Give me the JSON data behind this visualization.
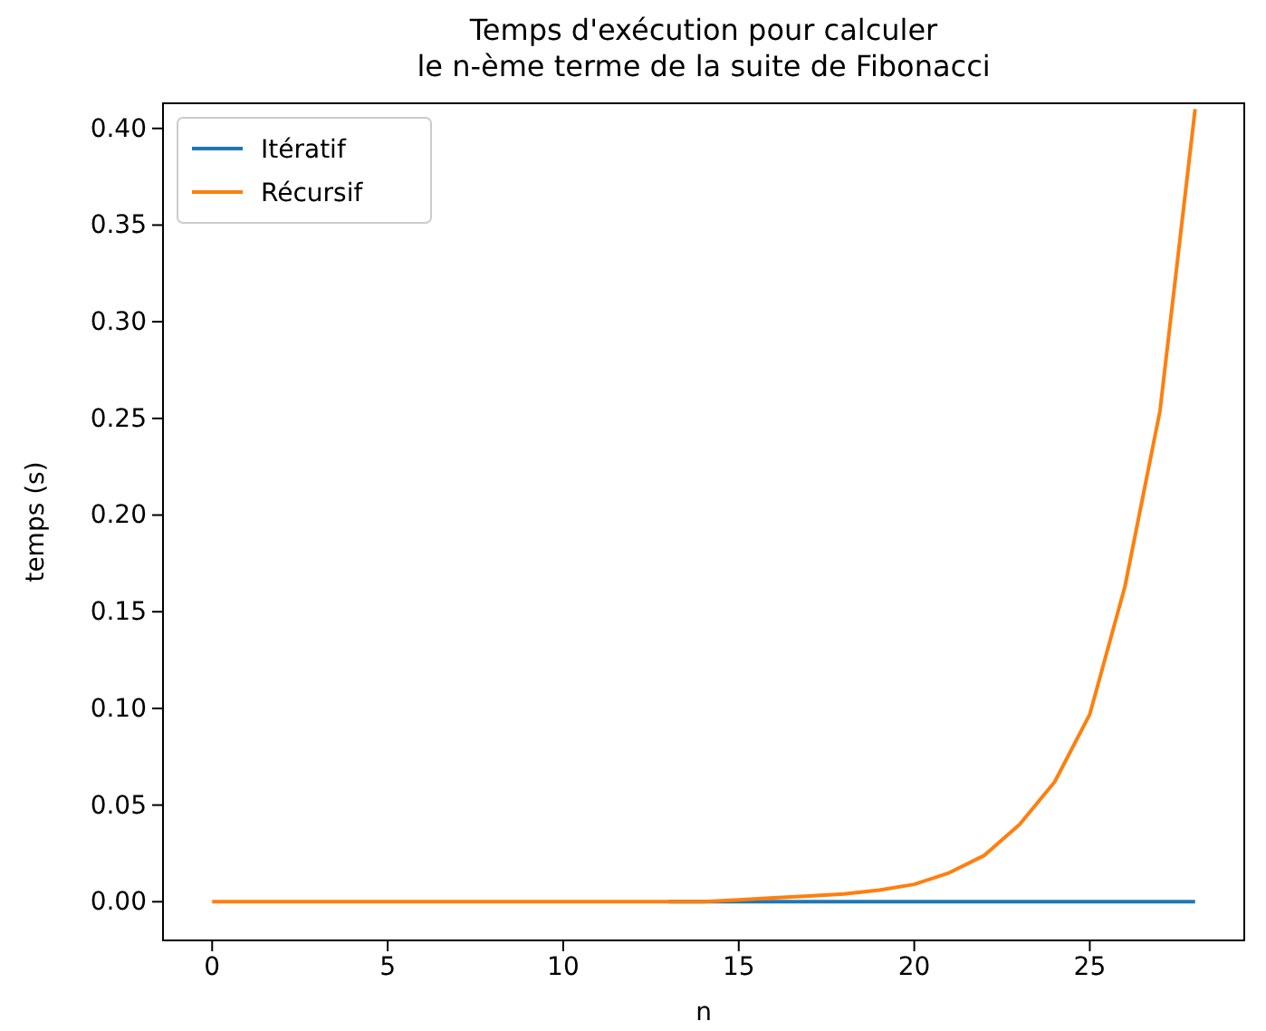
{
  "chart_data": {
    "type": "line",
    "title": "Temps d'exécution pour calculer\nle n-ème terme de la suite de Fibonacci",
    "xlabel": "n",
    "ylabel": "temps (s)",
    "x": [
      0,
      1,
      2,
      3,
      4,
      5,
      6,
      7,
      8,
      9,
      10,
      11,
      12,
      13,
      14,
      15,
      16,
      17,
      18,
      19,
      20,
      21,
      22,
      23,
      24,
      25,
      26,
      27,
      28
    ],
    "series": [
      {
        "name": "Itératif",
        "color": "#1f77b4",
        "values": [
          null,
          null,
          null,
          null,
          null,
          null,
          null,
          null,
          null,
          null,
          null,
          null,
          null,
          0,
          0,
          0,
          0,
          0,
          0,
          0,
          0,
          0,
          0,
          0,
          0,
          0,
          0,
          0,
          0
        ]
      },
      {
        "name": "Récursif",
        "color": "#ff7f0e",
        "values": [
          0,
          0,
          0,
          0,
          0,
          0,
          0,
          0,
          0,
          0,
          0,
          0,
          0,
          0,
          0,
          0.001,
          0.002,
          0.003,
          0.004,
          0.006,
          0.009,
          0.015,
          0.024,
          0.04,
          0.062,
          0.097,
          0.163,
          0.254,
          0.41
        ]
      }
    ],
    "xlim": [
      -1.4,
      29.4
    ],
    "ylim": [
      -0.02,
      0.413
    ],
    "xticks": [
      0,
      5,
      10,
      15,
      20,
      25
    ],
    "yticks": [
      {
        "value": 0,
        "label": "0.00"
      },
      {
        "value": 0.05,
        "label": "0.05"
      },
      {
        "value": 0.1,
        "label": "0.10"
      },
      {
        "value": 0.15,
        "label": "0.15"
      },
      {
        "value": 0.2,
        "label": "0.20"
      },
      {
        "value": 0.25,
        "label": "0.25"
      },
      {
        "value": 0.3,
        "label": "0.30"
      },
      {
        "value": 0.35,
        "label": "0.35"
      },
      {
        "value": 0.4,
        "label": "0.40"
      }
    ],
    "legend": "top left",
    "grid": false
  }
}
